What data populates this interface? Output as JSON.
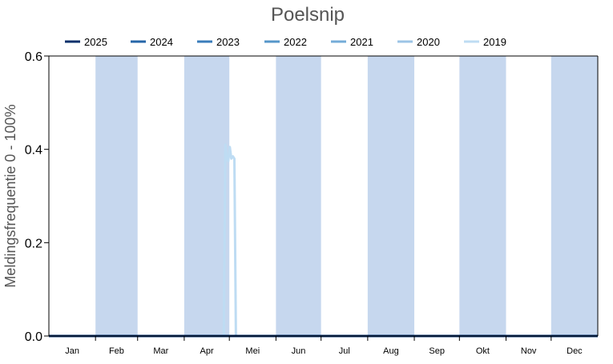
{
  "chart_data": {
    "type": "line",
    "title": "Poelsnip",
    "ylabel": "Meldingsfrequentie 0 - 100%",
    "xlabel": "",
    "ylim": [
      0,
      0.6
    ],
    "yticks": [
      "0.0",
      "0.2",
      "0.4",
      "0.6"
    ],
    "ytick_values": [
      0,
      0.2,
      0.4,
      0.6
    ],
    "months": [
      "Jan",
      "Feb",
      "Mar",
      "Apr",
      "Mei",
      "Jun",
      "Jul",
      "Aug",
      "Sep",
      "Okt",
      "Nov",
      "Dec"
    ],
    "month_shading": "alternating months (Feb, Apr, Jun, Aug, Okt, Dec) shaded light blue",
    "legend_position": "top",
    "grid": false,
    "series": [
      {
        "name": "2025",
        "color": "#08306b",
        "points": [
          [
            1,
            0
          ],
          [
            365,
            0
          ]
        ]
      },
      {
        "name": "2024",
        "color": "#2666a8",
        "points": [
          [
            1,
            0
          ],
          [
            365,
            0
          ]
        ]
      },
      {
        "name": "2023",
        "color": "#3a7dbb",
        "points": [
          [
            1,
            0
          ],
          [
            365,
            0
          ]
        ]
      },
      {
        "name": "2022",
        "color": "#5596c9",
        "points": [
          [
            1,
            0
          ],
          [
            365,
            0
          ]
        ]
      },
      {
        "name": "2021",
        "color": "#74acd8",
        "points": [
          [
            1,
            0
          ],
          [
            365,
            0
          ]
        ]
      },
      {
        "name": "2020",
        "color": "#9cc4e6",
        "points": [
          [
            1,
            0
          ],
          [
            365,
            0
          ]
        ]
      },
      {
        "name": "2019",
        "color": "#bedcf3",
        "points": [
          [
            1,
            0
          ],
          [
            117,
            0
          ],
          [
            118,
            0.41
          ],
          [
            119,
            0.38
          ],
          [
            120,
            0.375
          ],
          [
            121,
            0.405
          ],
          [
            122,
            0.38
          ],
          [
            123,
            0.385
          ],
          [
            124,
            0.38
          ],
          [
            125,
            0
          ],
          [
            365,
            0
          ]
        ]
      }
    ]
  }
}
